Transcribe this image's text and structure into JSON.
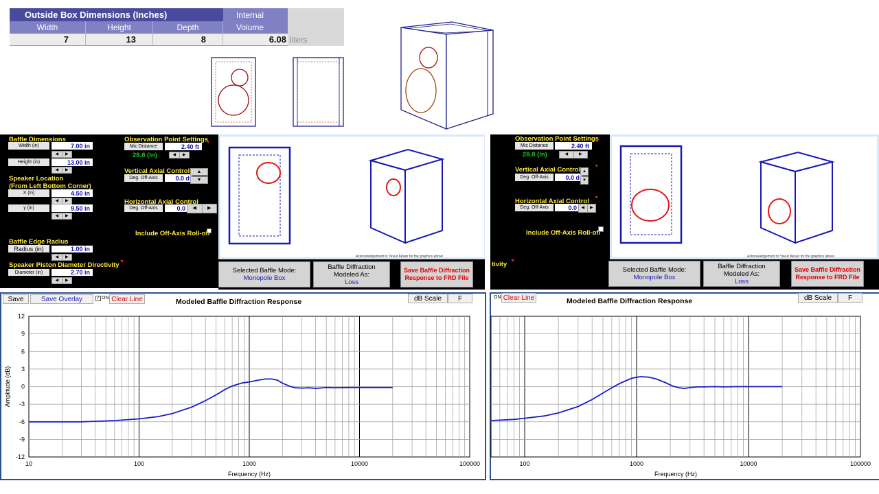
{
  "box_table": {
    "title": "Outside Box Dimensions (Inches)",
    "col_width": "Width",
    "col_height": "Height",
    "col_depth": "Depth",
    "internal_line1": "Internal",
    "internal_line2": "Volume",
    "width": "7",
    "height": "13",
    "depth": "8",
    "volume": "6.08",
    "volume_unit": "liters"
  },
  "left_panel": {
    "baffle_dimensions": "Baffle Dimensions",
    "width_label": "Width (in)",
    "width_value": "7.00 in",
    "height_label": "Height (in)",
    "height_value": "13.00 in",
    "speaker_location_1": "Speaker Location",
    "speaker_location_2": "(From Left Bottom Corner)",
    "x_label": "X (in)",
    "x_value": "4.50 in",
    "y_label": "y (in)",
    "y_value": "9.50 in",
    "edge_radius_title": "Baffle Edge Radius",
    "radius_label": "Radius (in)",
    "radius_value": "1.00 in",
    "piston_title": "Speaker Piston Diameter Directivity",
    "diameter_label": "Diameter (in)",
    "diameter_value": "2.70 in",
    "obs_title": "Observation Point Settings",
    "mic_label": "Mic Distance",
    "mic_value": "2.40 ft",
    "mic_in": "28.8 (in)",
    "vertical_title": "Vertical Axial Control",
    "vert_label": "Deg. Off-Axis",
    "vert_value": "0.0 d",
    "horizontal_title": "Horizontal Axial Control",
    "horiz_label": "Deg. Off-Axis",
    "horiz_value": "0.0",
    "include_offaxis": "Include Off-Axis Roll-off",
    "ack": "Acknowledgement to Yavuz Aksan for the graphics above",
    "selected_mode_label": "Selected Baffle Mode:",
    "selected_mode_value": "Monopole Box",
    "modeled_label_1": "Baffle Diffraction",
    "modeled_label_2": "Modeled As:",
    "modeled_value": "Loss",
    "save_frd_1": "Save Baffle Diffraction",
    "save_frd_2": "Response to FRD File"
  },
  "right_panel": {
    "obs_title": "Observation Point Settings",
    "mic_label": "Mic Distance",
    "mic_value": "2.40 ft",
    "mic_in": "28.8 (in)",
    "vertical_title": "Vertical Axial Control",
    "vert_label": "Deg. Off-Axis",
    "vert_value": "0.0 d",
    "horizontal_title": "Horizontal Axial Control",
    "horiz_label": "Deg. Off-Axis",
    "horiz_value": "0.0",
    "include_offaxis": "Include Off-Axis Roll-off",
    "fragment": "tivity",
    "ack": "Acknowledgement to Yavuz Aksan for the graphics above",
    "selected_mode_label": "Selected Baffle Mode:",
    "selected_mode_value": "Monopole Box",
    "modeled_label_1": "Baffle Diffraction",
    "modeled_label_2": "Modeled As:",
    "modeled_value": "Loss",
    "save_frd_1": "Save Baffle Diffraction",
    "save_frd_2": "Response to FRD File"
  },
  "left_toolbar": {
    "save": "Save",
    "save_overlay": "Save Overlay",
    "on": "ON",
    "clear_line": "Clear Line",
    "db_scale": "dB Scale",
    "f": "F"
  },
  "right_toolbar": {
    "on": "ON",
    "clear_line": "Clear Line",
    "db_scale": "dB Scale",
    "f": "F"
  },
  "chart_data": [
    {
      "type": "line",
      "title": "Modeled Baffle Diffraction Response",
      "xlabel": "Frequency (Hz)",
      "ylabel": "Amplitude (dB)",
      "x_scale": "log",
      "xlim": [
        10,
        100000
      ],
      "ylim": [
        -12,
        12
      ],
      "x_ticks": [
        10,
        100,
        1000,
        10000,
        100000
      ],
      "x_tick_labels": [
        "10",
        "100",
        "1000",
        "10000",
        "100000"
      ],
      "y_ticks": [
        12,
        9,
        6,
        3,
        0,
        -3,
        -6,
        -9,
        -12
      ],
      "grid": true,
      "series": [
        {
          "color": "#1c1cc8",
          "points": [
            [
              10,
              -6
            ],
            [
              30,
              -6
            ],
            [
              60,
              -5.8
            ],
            [
              100,
              -5.5
            ],
            [
              150,
              -5.1
            ],
            [
              200,
              -4.6
            ],
            [
              300,
              -3.5
            ],
            [
              400,
              -2.4
            ],
            [
              500,
              -1.4
            ],
            [
              600,
              -0.5
            ],
            [
              700,
              0.1
            ],
            [
              850,
              0.6
            ],
            [
              1000,
              0.8
            ],
            [
              1200,
              1.1
            ],
            [
              1400,
              1.3
            ],
            [
              1600,
              1.3
            ],
            [
              1800,
              1.1
            ],
            [
              2000,
              0.6
            ],
            [
              2300,
              0.1
            ],
            [
              2600,
              -0.2
            ],
            [
              3000,
              -0.25
            ],
            [
              3500,
              -0.2
            ],
            [
              4000,
              -0.3
            ],
            [
              5000,
              -0.15
            ],
            [
              6000,
              -0.2
            ],
            [
              8000,
              -0.15
            ],
            [
              10000,
              -0.15
            ],
            [
              15000,
              -0.15
            ],
            [
              20000,
              -0.15
            ]
          ]
        }
      ]
    },
    {
      "type": "line",
      "title": "Modeled Baffle Diffraction Response",
      "xlabel": "Frequency (Hz)",
      "ylabel": "",
      "x_scale": "log",
      "xlim": [
        50,
        100000
      ],
      "ylim": [
        -12,
        12
      ],
      "x_ticks": [
        100,
        1000,
        10000,
        100000
      ],
      "x_tick_labels": [
        "100",
        "1000",
        "10000",
        "100000"
      ],
      "y_ticks": [],
      "grid": true,
      "series": [
        {
          "color": "#1c1cc8",
          "points": [
            [
              50,
              -5.8
            ],
            [
              80,
              -5.6
            ],
            [
              100,
              -5.4
            ],
            [
              150,
              -5
            ],
            [
              200,
              -4.5
            ],
            [
              300,
              -3.4
            ],
            [
              400,
              -2.2
            ],
            [
              500,
              -1.1
            ],
            [
              600,
              -0.2
            ],
            [
              700,
              0.5
            ],
            [
              800,
              1
            ],
            [
              900,
              1.4
            ],
            [
              1000,
              1.6
            ],
            [
              1100,
              1.7
            ],
            [
              1300,
              1.6
            ],
            [
              1500,
              1.3
            ],
            [
              1800,
              0.7
            ],
            [
              2100,
              0.1
            ],
            [
              2400,
              -0.2
            ],
            [
              2700,
              -0.3
            ],
            [
              3000,
              -0.15
            ],
            [
              3500,
              -0.05
            ],
            [
              4000,
              -0.05
            ],
            [
              5000,
              0
            ],
            [
              6000,
              -0.05
            ],
            [
              8000,
              0
            ],
            [
              10000,
              0
            ],
            [
              15000,
              0
            ],
            [
              20000,
              0
            ]
          ]
        }
      ]
    }
  ]
}
